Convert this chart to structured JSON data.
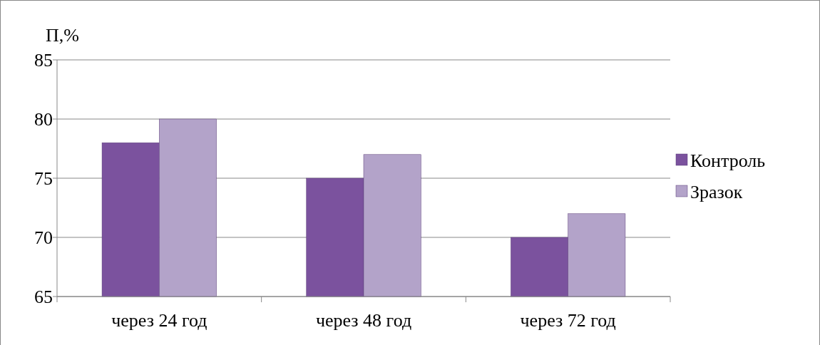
{
  "chart_data": {
    "type": "bar",
    "ylabel": "П,%",
    "categories": [
      "через 24 год",
      "через 48 год",
      "через 72 год"
    ],
    "series": [
      {
        "name": "Контроль",
        "color": "#7b529e",
        "values": [
          78,
          75,
          70
        ]
      },
      {
        "name": "Зразок",
        "color": "#b3a3c9",
        "values": [
          80,
          77,
          72
        ]
      }
    ],
    "ylim": [
      65,
      85
    ],
    "yticks": [
      65,
      70,
      75,
      80,
      85
    ],
    "grid": "y",
    "legend": "right"
  }
}
